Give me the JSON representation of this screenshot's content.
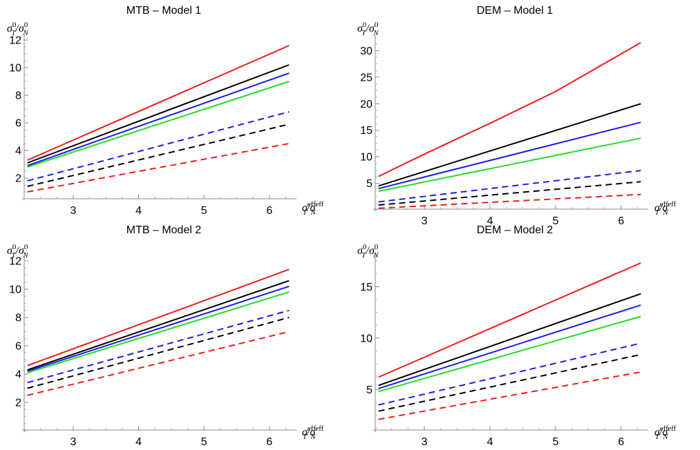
{
  "figure": {
    "colors": {
      "red": "#ee1c1c",
      "black": "#000000",
      "blue": "#1a1aee",
      "green": "#22dd22"
    }
  },
  "chart_data": [
    {
      "type": "line",
      "title": "MTB – Model 1",
      "ylabel": {
        "sym": "σ",
        "sub": "T",
        "sup": "0",
        "sep": "/",
        "sym2": "σ",
        "sub2": "N",
        "sup2": "0"
      },
      "xlabel": {
        "sym": "σ",
        "sub": "T",
        "sup": "eff",
        "sep": "/",
        "sym2": "σ",
        "sub2": "N",
        "sup2": "eff"
      },
      "xlim": [
        2.25,
        6.35
      ],
      "ylim": [
        0.5,
        12
      ],
      "xticks": [
        3,
        4,
        5,
        6
      ],
      "yticks": [
        2,
        4,
        6,
        8,
        10,
        12
      ],
      "series": [
        {
          "color": "red",
          "style": "solid",
          "x": [
            2.3,
            6.3
          ],
          "y": [
            3.3,
            11.6
          ]
        },
        {
          "color": "black",
          "style": "solid",
          "x": [
            2.3,
            6.3
          ],
          "y": [
            3.1,
            10.2
          ]
        },
        {
          "color": "blue",
          "style": "solid",
          "x": [
            2.3,
            6.3
          ],
          "y": [
            2.9,
            9.6
          ]
        },
        {
          "color": "green",
          "style": "solid",
          "x": [
            2.3,
            6.3
          ],
          "y": [
            2.8,
            9.0
          ]
        },
        {
          "color": "blue",
          "style": "dashed",
          "x": [
            2.3,
            6.3
          ],
          "y": [
            1.8,
            6.8
          ]
        },
        {
          "color": "black",
          "style": "dashed",
          "x": [
            2.3,
            6.3
          ],
          "y": [
            1.4,
            5.9
          ]
        },
        {
          "color": "red",
          "style": "dashed",
          "x": [
            2.3,
            6.3
          ],
          "y": [
            1.0,
            4.5
          ]
        }
      ]
    },
    {
      "type": "line",
      "title": "DEM – Model 1",
      "ylabel": {
        "sym": "σ",
        "sub": "T",
        "sup": "0",
        "sep": "/",
        "sym2": "σ",
        "sub2": "N",
        "sup2": "0"
      },
      "xlabel": {
        "sym": "σ",
        "sub": "T",
        "sup": "eff",
        "sep": "/",
        "sym2": "σ",
        "sub2": "N",
        "sup2": "eff"
      },
      "xlim": [
        2.25,
        6.35
      ],
      "ylim": [
        0,
        32
      ],
      "xticks": [
        3,
        4,
        5,
        6
      ],
      "yticks": [
        5,
        10,
        15,
        20,
        25,
        30
      ],
      "series": [
        {
          "color": "red",
          "style": "solid",
          "x": [
            2.3,
            3.0,
            4.0,
            5.0,
            6.3
          ],
          "y": [
            6.3,
            10.5,
            16.3,
            22.3,
            31.5
          ]
        },
        {
          "color": "black",
          "style": "solid",
          "x": [
            2.3,
            6.3
          ],
          "y": [
            4.5,
            20.0
          ]
        },
        {
          "color": "blue",
          "style": "solid",
          "x": [
            2.3,
            6.3
          ],
          "y": [
            4.0,
            16.5
          ]
        },
        {
          "color": "green",
          "style": "solid",
          "x": [
            2.3,
            6.3
          ],
          "y": [
            3.5,
            13.5
          ]
        },
        {
          "color": "blue",
          "style": "dashed",
          "x": [
            2.3,
            6.3
          ],
          "y": [
            1.5,
            7.4
          ]
        },
        {
          "color": "black",
          "style": "dashed",
          "x": [
            2.3,
            6.3
          ],
          "y": [
            0.9,
            5.3
          ]
        },
        {
          "color": "red",
          "style": "dashed",
          "x": [
            2.3,
            6.3
          ],
          "y": [
            0.3,
            2.9
          ]
        }
      ]
    },
    {
      "type": "line",
      "title": "MTB – Model 2",
      "ylabel": {
        "sym": "σ",
        "sub": "T",
        "sup": "0",
        "sep": "/",
        "sym2": "σ",
        "sub2": "N",
        "sup2": "0"
      },
      "xlabel": {
        "sym": "σ",
        "sub": "T",
        "sup": "eff",
        "sep": "/",
        "sym2": "σ",
        "sub2": "N",
        "sup2": "eff"
      },
      "xlim": [
        2.25,
        6.35
      ],
      "ylim": [
        0,
        12
      ],
      "xticks": [
        3,
        4,
        5,
        6
      ],
      "yticks": [
        2,
        4,
        6,
        8,
        10,
        12
      ],
      "series": [
        {
          "color": "red",
          "style": "solid",
          "x": [
            2.3,
            6.3
          ],
          "y": [
            4.6,
            11.4
          ]
        },
        {
          "color": "black",
          "style": "solid",
          "x": [
            2.3,
            6.3
          ],
          "y": [
            4.3,
            10.6
          ]
        },
        {
          "color": "blue",
          "style": "solid",
          "x": [
            2.3,
            6.3
          ],
          "y": [
            4.2,
            10.2
          ]
        },
        {
          "color": "green",
          "style": "solid",
          "x": [
            2.3,
            6.3
          ],
          "y": [
            4.1,
            9.8
          ]
        },
        {
          "color": "blue",
          "style": "dashed",
          "x": [
            2.3,
            6.3
          ],
          "y": [
            3.4,
            8.5
          ]
        },
        {
          "color": "black",
          "style": "dashed",
          "x": [
            2.3,
            6.3
          ],
          "y": [
            3.0,
            8.0
          ]
        },
        {
          "color": "red",
          "style": "dashed",
          "x": [
            2.3,
            6.3
          ],
          "y": [
            2.5,
            7.0
          ]
        }
      ]
    },
    {
      "type": "line",
      "title": "DEM – Model 2",
      "ylabel": {
        "sym": "σ",
        "sub": "T",
        "sup": "0",
        "sep": "/",
        "sym2": "σ",
        "sub2": "N",
        "sup2": "0"
      },
      "xlabel": {
        "sym": "σ",
        "sub": "T",
        "sup": "eff",
        "sep": "/",
        "sym2": "σ",
        "sub2": "N",
        "sup2": "eff"
      },
      "xlim": [
        2.25,
        6.35
      ],
      "ylim": [
        1,
        17.5
      ],
      "xticks": [
        3,
        4,
        5,
        6
      ],
      "yticks": [
        5,
        10,
        15
      ],
      "series": [
        {
          "color": "red",
          "style": "solid",
          "x": [
            2.3,
            6.3
          ],
          "y": [
            6.2,
            17.3
          ]
        },
        {
          "color": "black",
          "style": "solid",
          "x": [
            2.3,
            6.3
          ],
          "y": [
            5.4,
            14.3
          ]
        },
        {
          "color": "blue",
          "style": "solid",
          "x": [
            2.3,
            6.3
          ],
          "y": [
            5.1,
            13.2
          ]
        },
        {
          "color": "green",
          "style": "solid",
          "x": [
            2.3,
            6.3
          ],
          "y": [
            4.8,
            12.1
          ]
        },
        {
          "color": "blue",
          "style": "dashed",
          "x": [
            2.3,
            6.3
          ],
          "y": [
            3.5,
            9.5
          ]
        },
        {
          "color": "black",
          "style": "dashed",
          "x": [
            2.3,
            6.3
          ],
          "y": [
            2.9,
            8.4
          ]
        },
        {
          "color": "red",
          "style": "dashed",
          "x": [
            2.3,
            6.3
          ],
          "y": [
            2.1,
            6.7
          ]
        }
      ]
    }
  ]
}
